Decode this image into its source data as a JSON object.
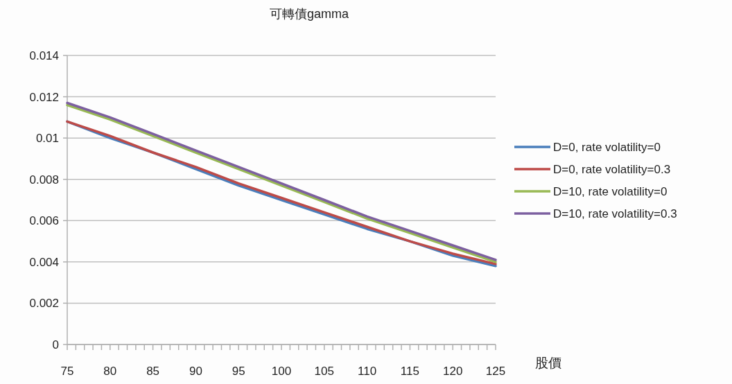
{
  "chart_data": {
    "type": "line",
    "title": "可轉債gamma",
    "xlabel": "股價",
    "x": [
      75,
      80,
      85,
      90,
      95,
      100,
      105,
      110,
      115,
      120,
      125
    ],
    "series": [
      {
        "name": "D=0, rate volatility=0",
        "color": "#4a7ebb",
        "values": [
          0.0108,
          0.01,
          0.0093,
          0.0085,
          0.0077,
          0.007,
          0.0063,
          0.0056,
          0.005,
          0.0043,
          0.0038
        ]
      },
      {
        "name": "D=0, rate volatility=0.3",
        "color": "#be4b48",
        "values": [
          0.0108,
          0.0101,
          0.0093,
          0.0086,
          0.0078,
          0.0071,
          0.0064,
          0.0057,
          0.005,
          0.0044,
          0.0039
        ]
      },
      {
        "name": "D=10, rate volatility=0",
        "color": "#98b954",
        "values": [
          0.0116,
          0.0109,
          0.0101,
          0.0093,
          0.0085,
          0.0077,
          0.0069,
          0.0061,
          0.0054,
          0.0047,
          0.004
        ]
      },
      {
        "name": "D=10, rate volatility=0.3",
        "color": "#7d60a0",
        "values": [
          0.0117,
          0.011,
          0.0102,
          0.0094,
          0.0086,
          0.0078,
          0.007,
          0.0062,
          0.0055,
          0.0048,
          0.0041
        ]
      }
    ],
    "xlim": [
      75,
      125
    ],
    "xticks": [
      75,
      {
        "value": 76,
        "label": null
      },
      {
        "value": 77,
        "label": null
      },
      {
        "value": 78,
        "label": null
      },
      {
        "value": 79,
        "label": null
      },
      80,
      {
        "value": 81,
        "label": null
      },
      {
        "value": 82,
        "label": null
      },
      {
        "value": 83,
        "label": null
      },
      {
        "value": 84,
        "label": null
      },
      85,
      {
        "value": 86,
        "label": null
      },
      {
        "value": 87,
        "label": null
      },
      {
        "value": 88,
        "label": null
      },
      {
        "value": 89,
        "label": null
      },
      90,
      {
        "value": 91,
        "label": null
      },
      {
        "value": 92,
        "label": null
      },
      {
        "value": 93,
        "label": null
      },
      {
        "value": 94,
        "label": null
      },
      95,
      {
        "value": 96,
        "label": null
      },
      {
        "value": 97,
        "label": null
      },
      {
        "value": 98,
        "label": null
      },
      {
        "value": 99,
        "label": null
      },
      100,
      {
        "value": 101,
        "label": null
      },
      {
        "value": 102,
        "label": null
      },
      {
        "value": 103,
        "label": null
      },
      {
        "value": 104,
        "label": null
      },
      105,
      {
        "value": 106,
        "label": null
      },
      {
        "value": 107,
        "label": null
      },
      {
        "value": 108,
        "label": null
      },
      {
        "value": 109,
        "label": null
      },
      110,
      {
        "value": 111,
        "label": null
      },
      {
        "value": 112,
        "label": null
      },
      {
        "value": 113,
        "label": null
      },
      {
        "value": 114,
        "label": null
      },
      115,
      {
        "value": 116,
        "label": null
      },
      {
        "value": 117,
        "label": null
      },
      {
        "value": 118,
        "label": null
      },
      {
        "value": 119,
        "label": null
      },
      120,
      {
        "value": 121,
        "label": null
      },
      {
        "value": 122,
        "label": null
      },
      {
        "value": 123,
        "label": null
      },
      {
        "value": 124,
        "label": null
      },
      125
    ],
    "ylim": [
      0,
      0.014
    ],
    "yticks": [
      0,
      0.002,
      0.004,
      0.006,
      0.008,
      0.01,
      0.012,
      0.014
    ],
    "grid": "y",
    "legend": "right",
    "marker": "none",
    "line_style": "solid"
  }
}
